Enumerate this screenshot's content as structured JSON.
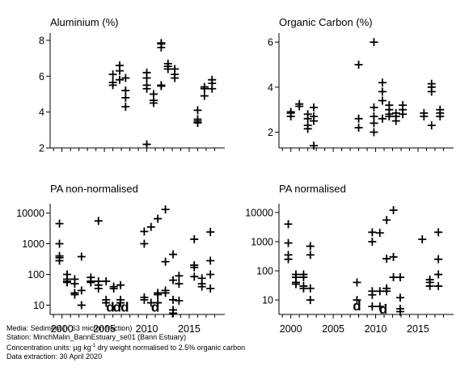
{
  "footer": {
    "line1": "Media: Sediment (< 63 micron fraction)",
    "line2": "Station: MinchMalin_BannEstuary_se01 (Bann Estuary)",
    "line3_prefix": "Concentration units:  µg kg",
    "line3_sup": "-1",
    "line3_suffix": " dry weight normalised to 2.5% organic carbon",
    "line4": "Data extraction: 30 April 2020"
  },
  "chart_data": [
    {
      "type": "scatter",
      "title": "Aluminium (%)",
      "xlim": [
        1998.6,
        2019.2
      ],
      "ylim": [
        2,
        8.4
      ],
      "yticks": [
        2,
        4,
        6,
        8
      ],
      "y_scale": "linear",
      "grid": false,
      "points": [
        [
          2006,
          5.5
        ],
        [
          2006,
          5.65
        ],
        [
          2006,
          6.1
        ],
        [
          2006.8,
          5.8
        ],
        [
          2006.8,
          6.3
        ],
        [
          2006.8,
          6.6
        ],
        [
          2007.5,
          4.3
        ],
        [
          2007.5,
          4.8
        ],
        [
          2007.5,
          5.2
        ],
        [
          2007.5,
          5.9
        ],
        [
          2010,
          2.2
        ],
        [
          2010,
          5.3
        ],
        [
          2010,
          5.5
        ],
        [
          2010,
          5.9
        ],
        [
          2010,
          6.2
        ],
        [
          2010.8,
          4.5
        ],
        [
          2010.8,
          4.65
        ],
        [
          2010.8,
          5.0
        ],
        [
          2011.7,
          5.45
        ],
        [
          2011.7,
          5.5
        ],
        [
          2011.7,
          7.6
        ],
        [
          2011.7,
          7.8
        ],
        [
          2011.7,
          7.85
        ],
        [
          2012.5,
          6.4
        ],
        [
          2012.5,
          6.55
        ],
        [
          2012.5,
          6.7
        ],
        [
          2013.3,
          5.9
        ],
        [
          2013.3,
          6.1
        ],
        [
          2013.3,
          6.4
        ],
        [
          2016,
          3.4
        ],
        [
          2016,
          3.5
        ],
        [
          2016,
          3.6
        ],
        [
          2016,
          4.1
        ],
        [
          2016.8,
          4.9
        ],
        [
          2016.8,
          5.3
        ],
        [
          2016.8,
          5.4
        ],
        [
          2017.7,
          5.3
        ],
        [
          2017.7,
          5.6
        ],
        [
          2017.7,
          5.8
        ]
      ]
    },
    {
      "type": "scatter",
      "title": "Organic Carbon (%)",
      "xlim": [
        1998.6,
        2019.2
      ],
      "ylim": [
        1.3,
        6.4
      ],
      "yticks": [
        2,
        4,
        6
      ],
      "y_scale": "linear",
      "grid": false,
      "points": [
        [
          2000,
          2.7
        ],
        [
          2000,
          2.85
        ],
        [
          2000,
          2.9
        ],
        [
          2001,
          3.15
        ],
        [
          2001,
          3.25
        ],
        [
          2002,
          2.15
        ],
        [
          2002,
          2.3
        ],
        [
          2002,
          2.6
        ],
        [
          2002,
          2.8
        ],
        [
          2002.7,
          1.4
        ],
        [
          2002.7,
          2.5
        ],
        [
          2002.7,
          2.7
        ],
        [
          2002.7,
          3.1
        ],
        [
          2008,
          2.2
        ],
        [
          2008,
          2.6
        ],
        [
          2008,
          5.0
        ],
        [
          2009.8,
          2.0
        ],
        [
          2009.8,
          2.4
        ],
        [
          2009.8,
          2.7
        ],
        [
          2009.8,
          3.1
        ],
        [
          2009.8,
          6.0
        ],
        [
          2010.8,
          2.6
        ],
        [
          2010.8,
          3.4
        ],
        [
          2010.8,
          3.8
        ],
        [
          2010.8,
          4.2
        ],
        [
          2011.6,
          2.7
        ],
        [
          2011.6,
          2.8
        ],
        [
          2011.6,
          3.0
        ],
        [
          2011.6,
          3.2
        ],
        [
          2012.4,
          2.5
        ],
        [
          2012.4,
          2.7
        ],
        [
          2012.4,
          2.85
        ],
        [
          2013.2,
          2.8
        ],
        [
          2013.2,
          3.0
        ],
        [
          2013.2,
          3.2
        ],
        [
          2015.7,
          2.7
        ],
        [
          2015.7,
          2.85
        ],
        [
          2016.6,
          2.3
        ],
        [
          2016.6,
          3.8
        ],
        [
          2016.6,
          4.0
        ],
        [
          2016.6,
          4.15
        ],
        [
          2017.6,
          2.7
        ],
        [
          2017.6,
          2.85
        ],
        [
          2017.6,
          3.0
        ]
      ]
    },
    {
      "type": "scatter",
      "title": "PA non-normalised",
      "xlim": [
        1998.6,
        2019.2
      ],
      "ylim": [
        5,
        20000
      ],
      "yticks": [
        10,
        100,
        1000,
        10000
      ],
      "y_scale": "log",
      "grid": false,
      "xticks": [
        2000,
        2005,
        2010,
        2015
      ],
      "points": [
        [
          1999.7,
          4500
        ],
        [
          1999.7,
          1000
        ],
        [
          1999.7,
          400
        ],
        [
          1999.7,
          350
        ],
        [
          1999.7,
          280
        ],
        [
          2000.6,
          100
        ],
        [
          2000.6,
          70
        ],
        [
          2000.6,
          60
        ],
        [
          2000.6,
          55
        ],
        [
          2001.5,
          70
        ],
        [
          2001.5,
          50
        ],
        [
          2001.5,
          25
        ],
        [
          2001.5,
          22
        ],
        [
          2002.3,
          380
        ],
        [
          2002.3,
          30
        ],
        [
          2002.3,
          10
        ],
        [
          2003.4,
          80
        ],
        [
          2003.4,
          60
        ],
        [
          2003.4,
          55
        ],
        [
          2004.3,
          5500
        ],
        [
          2004.3,
          60
        ],
        [
          2004.3,
          45
        ],
        [
          2004.3,
          35
        ],
        [
          2005.2,
          60
        ],
        [
          2005.2,
          15
        ],
        [
          2005.2,
          12
        ],
        [
          2006.1,
          40
        ],
        [
          2006.1,
          35
        ],
        [
          2006.9,
          45
        ],
        [
          2006.9,
          15
        ],
        [
          2006.9,
          12
        ],
        [
          2009.7,
          2500
        ],
        [
          2009.7,
          1000
        ],
        [
          2009.7,
          18
        ],
        [
          2009.7,
          15
        ],
        [
          2010.5,
          3500
        ],
        [
          2010.5,
          12
        ],
        [
          2011.3,
          6500
        ],
        [
          2011.3,
          25
        ],
        [
          2011.3,
          22
        ],
        [
          2011.3,
          12
        ],
        [
          2012.2,
          13000
        ],
        [
          2012.2,
          260
        ],
        [
          2012.2,
          30
        ],
        [
          2012.2,
          25
        ],
        [
          2013.1,
          450
        ],
        [
          2013.1,
          65
        ],
        [
          2013.1,
          15
        ],
        [
          2013.1,
          7
        ],
        [
          2013.1,
          5.5
        ],
        [
          2013.8,
          90
        ],
        [
          2013.8,
          50
        ],
        [
          2013.8,
          14
        ],
        [
          2015.6,
          1400
        ],
        [
          2015.6,
          200
        ],
        [
          2015.6,
          170
        ],
        [
          2015.6,
          85
        ],
        [
          2016.5,
          75
        ],
        [
          2016.5,
          50
        ],
        [
          2016.5,
          40
        ],
        [
          2017.5,
          2400
        ],
        [
          2017.5,
          280
        ],
        [
          2017.5,
          100
        ],
        [
          2017.5,
          35
        ]
      ],
      "annotations": [
        {
          "text": "d",
          "x": 2005.7,
          "y": 9
        },
        {
          "text": "d",
          "x": 2006.5,
          "y": 9
        },
        {
          "text": "d",
          "x": 2007.4,
          "y": 9
        },
        {
          "text": "d",
          "x": 2011.0,
          "y": 9
        }
      ]
    },
    {
      "type": "scatter",
      "title": "PA normalised",
      "xlim": [
        1998.6,
        2019.2
      ],
      "ylim": [
        3.2,
        20000
      ],
      "yticks": [
        10,
        100,
        1000,
        10000
      ],
      "y_scale": "log",
      "grid": false,
      "xticks": [
        2000,
        2005,
        2010,
        2015
      ],
      "points": [
        [
          1999.7,
          4000
        ],
        [
          1999.7,
          900
        ],
        [
          1999.7,
          350
        ],
        [
          1999.7,
          250
        ],
        [
          2000.6,
          75
        ],
        [
          2000.6,
          60
        ],
        [
          2000.6,
          40
        ],
        [
          2000.6,
          35
        ],
        [
          2001.5,
          75
        ],
        [
          2001.5,
          60
        ],
        [
          2001.5,
          30
        ],
        [
          2001.5,
          25
        ],
        [
          2002.3,
          700
        ],
        [
          2002.3,
          350
        ],
        [
          2002.3,
          25
        ],
        [
          2002.3,
          10
        ],
        [
          2007.8,
          40
        ],
        [
          2007.8,
          10
        ],
        [
          2009.6,
          2100
        ],
        [
          2009.6,
          1000
        ],
        [
          2009.6,
          20
        ],
        [
          2009.6,
          15
        ],
        [
          2009.6,
          6
        ],
        [
          2010.5,
          2000
        ],
        [
          2010.5,
          20
        ],
        [
          2010.5,
          6
        ],
        [
          2011.3,
          5500
        ],
        [
          2011.3,
          260
        ],
        [
          2011.3,
          25
        ],
        [
          2011.3,
          20
        ],
        [
          2012.1,
          12000
        ],
        [
          2012.1,
          300
        ],
        [
          2012.1,
          60
        ],
        [
          2012.9,
          60
        ],
        [
          2012.9,
          12
        ],
        [
          2012.9,
          5
        ],
        [
          2012.9,
          4
        ],
        [
          2015.5,
          1200
        ],
        [
          2016.4,
          50
        ],
        [
          2016.4,
          40
        ],
        [
          2016.4,
          30
        ],
        [
          2017.4,
          2100
        ],
        [
          2017.4,
          250
        ],
        [
          2017.4,
          75
        ],
        [
          2017.4,
          30
        ]
      ],
      "annotations": [
        {
          "text": "d",
          "x": 2007.8,
          "y": 6.5
        },
        {
          "text": "d",
          "x": 2010.9,
          "y": 5
        }
      ]
    }
  ]
}
